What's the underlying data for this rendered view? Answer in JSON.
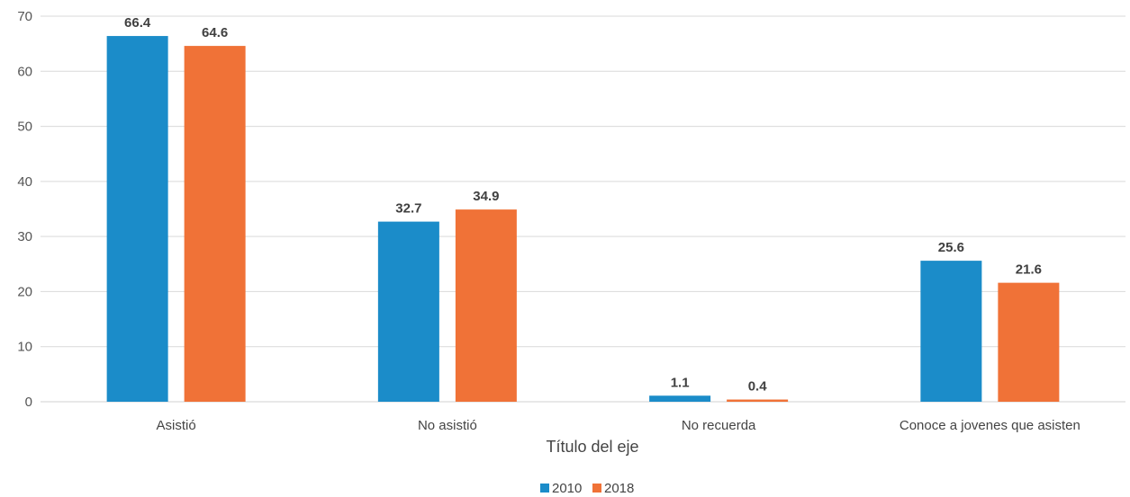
{
  "chart_data": {
    "type": "bar",
    "categories": [
      "Asistió",
      "No asistió",
      "No recuerda",
      "Conoce a jovenes que asisten"
    ],
    "series": [
      {
        "name": "2010",
        "values": [
          66.4,
          32.7,
          1.1,
          25.6
        ],
        "color": "#1b8cc9"
      },
      {
        "name": "2018",
        "values": [
          64.6,
          34.9,
          0.4,
          21.6
        ],
        "color": "#f07237"
      }
    ],
    "title": "",
    "xlabel": "Título del eje",
    "ylabel": "",
    "ylim": [
      0,
      70
    ],
    "yticks": [
      0,
      10,
      20,
      30,
      40,
      50,
      60,
      70
    ],
    "grid": true,
    "legend_position": "bottom"
  }
}
